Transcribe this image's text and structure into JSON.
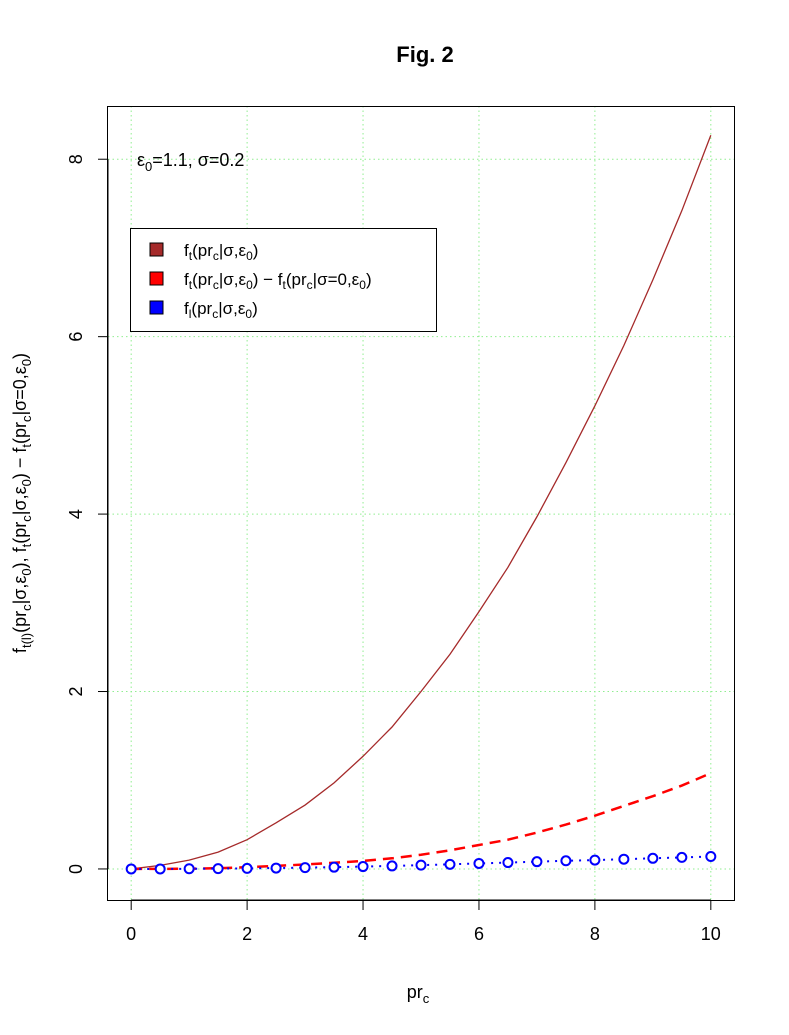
{
  "chart_data": {
    "type": "line",
    "title": "Fig. 2",
    "xlabel": {
      "main": "pr",
      "sub": "c"
    },
    "ylabel": "f_{t(l)}(pr_c|σ,ε_0), f_t(pr_c|σ,ε_0) − f_t(pr_c|σ=0,ε_0)",
    "xlim": [
      -0.4,
      10.4
    ],
    "ylim": [
      -0.35,
      8.6
    ],
    "x_ticks": [
      0,
      2,
      4,
      6,
      8,
      10
    ],
    "y_ticks": [
      0,
      2,
      4,
      6,
      8
    ],
    "grid": true,
    "legend_position": "top-left",
    "annotation": "ε0=1.1, σ=0.2",
    "series": [
      {
        "name": "f_t(pr_c|σ,ε_0)",
        "color": "#a52a2a",
        "style": "solid",
        "x": [
          0,
          0.5,
          1,
          1.5,
          2,
          2.5,
          3,
          3.5,
          4,
          4.5,
          5,
          5.5,
          6,
          6.5,
          7,
          7.5,
          8,
          8.5,
          9,
          9.5,
          10
        ],
        "values": [
          0,
          0.04,
          0.1,
          0.19,
          0.33,
          0.52,
          0.72,
          0.97,
          1.27,
          1.6,
          2.0,
          2.42,
          2.9,
          3.4,
          3.97,
          4.58,
          5.22,
          5.9,
          6.64,
          7.42,
          8.27
        ]
      },
      {
        "name": "f_t(pr_c|σ,ε_0) − f_t(pr_c|σ=0,ε_0)",
        "color": "#ff0000",
        "style": "dashed",
        "x": [
          0,
          0.5,
          1,
          1.5,
          2,
          2.5,
          3,
          3.5,
          4,
          4.5,
          5,
          5.5,
          6,
          6.5,
          7,
          7.5,
          8,
          8.5,
          9,
          9.5,
          10
        ],
        "values": [
          0,
          0.001,
          0.003,
          0.008,
          0.02,
          0.035,
          0.05,
          0.07,
          0.09,
          0.12,
          0.16,
          0.21,
          0.27,
          0.33,
          0.41,
          0.5,
          0.6,
          0.71,
          0.82,
          0.94,
          1.08
        ]
      },
      {
        "name": "f_l(pr_c|σ,ε_0)",
        "color": "#0000ff",
        "style": "dotted-circles",
        "x": [
          0,
          0.5,
          1,
          1.5,
          2,
          2.5,
          3,
          3.5,
          4,
          4.5,
          5,
          5.5,
          6,
          6.5,
          7,
          7.5,
          8,
          8.5,
          9,
          9.5,
          10
        ],
        "values": [
          0,
          0.0,
          0.002,
          0.004,
          0.006,
          0.01,
          0.015,
          0.02,
          0.027,
          0.034,
          0.043,
          0.052,
          0.062,
          0.072,
          0.082,
          0.092,
          0.1,
          0.11,
          0.12,
          0.13,
          0.14
        ]
      }
    ]
  }
}
